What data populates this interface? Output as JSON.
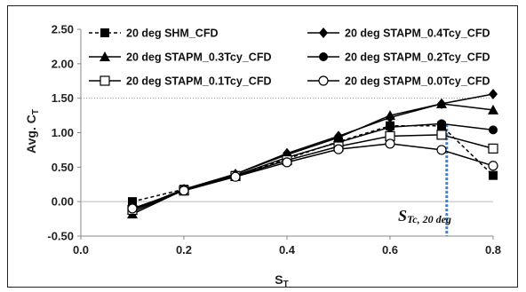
{
  "chart_data": {
    "type": "line",
    "title": "",
    "xlabel": "S",
    "xlabel_sub": "T",
    "ylabel": "Avg. C",
    "ylabel_sub": "T",
    "xlim": [
      0.0,
      0.8
    ],
    "ylim": [
      -0.5,
      2.5
    ],
    "x_ticks": [
      "0.0",
      "0.2",
      "0.4",
      "0.6",
      "0.8"
    ],
    "y_ticks": [
      "-0.50",
      "0.00",
      "0.50",
      "1.00",
      "1.50",
      "2.00",
      "2.50"
    ],
    "grid": "horizontal dotted at y=1.5",
    "legend_position": "top",
    "series": [
      {
        "name": "20 deg SHM_CFD",
        "marker": "square-filled",
        "dash": "dashed",
        "x": [
          0.1,
          0.2,
          0.3,
          0.4,
          0.5,
          0.6,
          0.7,
          0.8
        ],
        "y": [
          0.0,
          0.18,
          0.38,
          0.62,
          0.87,
          1.1,
          1.1,
          0.38
        ]
      },
      {
        "name": "20 deg STAPM_0.4Tcy_CFD",
        "marker": "diamond-filled",
        "dash": "solid",
        "x": [
          0.1,
          0.2,
          0.3,
          0.4,
          0.5,
          0.6,
          0.7,
          0.8
        ],
        "y": [
          -0.12,
          0.18,
          0.4,
          0.7,
          0.95,
          1.22,
          1.42,
          1.56
        ]
      },
      {
        "name": "20 deg STAPM_0.3Tcy_CFD",
        "marker": "triangle-filled",
        "dash": "solid",
        "x": [
          0.1,
          0.2,
          0.3,
          0.4,
          0.5,
          0.6,
          0.7,
          0.8
        ],
        "y": [
          -0.18,
          0.17,
          0.4,
          0.68,
          0.93,
          1.25,
          1.42,
          1.33
        ]
      },
      {
        "name": "20 deg STAPM_0.2Tcy_CFD",
        "marker": "circle-filled",
        "dash": "solid",
        "x": [
          0.1,
          0.2,
          0.3,
          0.4,
          0.5,
          0.6,
          0.7,
          0.8
        ],
        "y": [
          -0.15,
          0.17,
          0.38,
          0.64,
          0.86,
          1.08,
          1.13,
          1.04
        ]
      },
      {
        "name": "20 deg STAPM_0.1Tcy_CFD",
        "marker": "square-open",
        "dash": "solid",
        "x": [
          0.1,
          0.2,
          0.3,
          0.4,
          0.5,
          0.6,
          0.7,
          0.8
        ],
        "y": [
          -0.12,
          0.16,
          0.37,
          0.6,
          0.8,
          0.95,
          0.97,
          0.77
        ]
      },
      {
        "name": "20 deg STAPM_0.0Tcy_CFD",
        "marker": "circle-open",
        "dash": "solid",
        "x": [
          0.1,
          0.2,
          0.3,
          0.4,
          0.5,
          0.6,
          0.7,
          0.8
        ],
        "y": [
          -0.1,
          0.16,
          0.36,
          0.57,
          0.76,
          0.84,
          0.75,
          0.52
        ]
      }
    ],
    "annotation": {
      "main": "S",
      "sub": "Tc, 20 deg",
      "marker_line_x": 0.71,
      "marker_line_color": "#3a7fd5"
    }
  }
}
